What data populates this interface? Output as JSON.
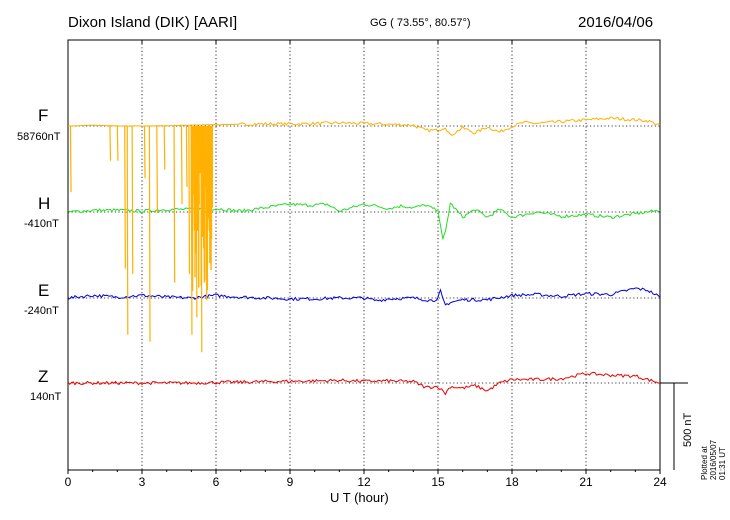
{
  "header": {
    "station": "Dixon Island (DIK)  [AARI]",
    "coords": "GG ( 73.55°,  80.57°)",
    "date": "2016/04/06"
  },
  "footer": {
    "xlabel": "U T (hour)",
    "plotted": "Plotted at 2016/05/07 01:31  UT"
  },
  "scale_bar": {
    "label": "500 nT"
  },
  "colors": {
    "F": "#ffb000",
    "H": "#22dd22",
    "E": "#0000dd",
    "Z": "#ee0000"
  },
  "components": [
    {
      "name": "F",
      "baseline": "58760nT"
    },
    {
      "name": "H",
      "baseline": "-410nT"
    },
    {
      "name": "E",
      "baseline": "-240nT"
    },
    {
      "name": "Z",
      "baseline": "140nT"
    }
  ],
  "chart_data": {
    "type": "line",
    "xlabel": "U T (hour)",
    "xlim": [
      0,
      24
    ],
    "xticks": [
      "0",
      "3",
      "6",
      "9",
      "12",
      "15",
      "18",
      "21",
      "24"
    ],
    "grid": true,
    "scale_nT": 500,
    "y_units": "nT deviation from baseline",
    "series": [
      {
        "name": "F",
        "baseline_nT": 58760,
        "x": [
          0,
          0.15,
          0.5,
          1,
          2,
          3,
          4,
          5,
          6,
          7,
          8,
          9,
          10,
          11,
          12,
          13,
          14,
          14.5,
          15,
          15.3,
          15.5,
          16,
          16.5,
          17,
          17.5,
          18,
          18.5,
          19,
          20,
          21,
          22,
          23,
          23.5,
          24
        ],
        "values": [
          0,
          0,
          2,
          5,
          0,
          0,
          2,
          5,
          8,
          10,
          12,
          12,
          14,
          18,
          14,
          10,
          5,
          -25,
          -25,
          -5,
          -55,
          -10,
          -40,
          -5,
          -35,
          0,
          20,
          15,
          25,
          35,
          45,
          35,
          30,
          5
        ]
      },
      {
        "name": "H",
        "baseline_nT": -410,
        "x": [
          0,
          1,
          2,
          3,
          4,
          5,
          6,
          7,
          8,
          9,
          9.5,
          10,
          10.5,
          11,
          11.5,
          12,
          12.5,
          13,
          13.5,
          14,
          14.5,
          15,
          15.1,
          15.2,
          15.3,
          15.5,
          16,
          16.5,
          17,
          17.5,
          18,
          19,
          20,
          21,
          22,
          23,
          24
        ],
        "values": [
          0,
          10,
          10,
          5,
          15,
          15,
          20,
          5,
          25,
          45,
          40,
          40,
          45,
          5,
          25,
          45,
          35,
          20,
          35,
          25,
          40,
          5,
          -70,
          -160,
          -115,
          50,
          -30,
          15,
          -30,
          15,
          -30,
          0,
          -25,
          -15,
          -30,
          -10,
          10
        ]
      },
      {
        "name": "E",
        "baseline_nT": -240,
        "x": [
          0,
          1,
          2,
          3,
          4,
          5,
          6,
          7,
          8,
          9,
          10,
          11,
          12,
          12.5,
          13,
          14,
          14.8,
          15,
          15.1,
          15.2,
          15.3,
          15.5,
          16,
          17,
          18,
          19,
          20,
          21,
          22,
          23,
          23.5,
          24
        ],
        "values": [
          0,
          15,
          5,
          15,
          5,
          0,
          15,
          5,
          0,
          -5,
          -5,
          0,
          0,
          -15,
          -5,
          0,
          -15,
          0,
          40,
          -10,
          -40,
          -25,
          -10,
          -10,
          15,
          20,
          10,
          25,
          20,
          55,
          45,
          5
        ]
      },
      {
        "name": "Z",
        "baseline_nT": 140,
        "x": [
          0,
          1,
          2,
          3,
          4,
          5,
          6,
          7,
          8,
          9,
          10,
          11,
          12,
          13,
          14,
          14.5,
          15,
          15.3,
          15.5,
          16,
          16.5,
          17,
          17.5,
          18,
          19,
          20,
          21,
          22,
          23,
          24
        ],
        "values": [
          0,
          0,
          0,
          0,
          0,
          0,
          3,
          5,
          8,
          10,
          12,
          15,
          10,
          12,
          8,
          -25,
          -20,
          -60,
          -20,
          -30,
          -15,
          -45,
          0,
          20,
          20,
          25,
          55,
          45,
          40,
          0
        ]
      }
    ],
    "F_dropouts": {
      "note": "F signal drops sharply to low values repeatedly between ~0 and ~6 UT",
      "x": [
        0.1,
        1.7,
        2,
        2.3,
        2.4,
        2.6,
        3.1,
        3.3,
        3.6,
        3.9,
        4.3,
        4.6,
        4.8,
        4.9,
        5,
        5.1,
        5.2,
        5.3,
        5.4,
        5.5,
        5.6,
        5.7,
        5.8
      ],
      "values": [
        -380,
        -200,
        -200,
        -820,
        -1200,
        -850,
        -300,
        -1240,
        -500,
        -250,
        -900,
        -450,
        -350,
        -850,
        -1200,
        -600,
        -1100,
        -450,
        -1300,
        -900,
        -1000,
        -600,
        -650
      ]
    }
  }
}
